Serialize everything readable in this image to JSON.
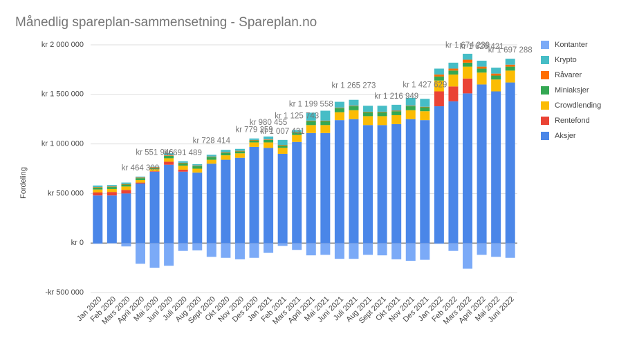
{
  "chart_data": {
    "type": "bar",
    "stacked": true,
    "title": "Månedlig spareplan-sammensetning - Spareplan.no",
    "y_label": "Fordeling",
    "categories": [
      "Jan 2020",
      "Feb 2020",
      "Mars 2020",
      "April 2020",
      "Mai 2020",
      "Juni 2020",
      "Juli 2020",
      "Aug 2020",
      "Sept 2020",
      "Okt 2020",
      "Nov 2020",
      "Des 2020",
      "Jan 2021",
      "Feb 2021",
      "Mars 2021",
      "April 2021",
      "Mai 2021",
      "Juni 2021",
      "Juli 2021",
      "Aug 2021",
      "Sept 2021",
      "Okt 2021",
      "Nov 2021",
      "Des 2021",
      "Jan 2022",
      "Feb 2022",
      "Mars 2022",
      "April 2022",
      "Mai 2022",
      "Juni 2022"
    ],
    "series": [
      {
        "name": "Aksjer",
        "color": "#4a86e8",
        "values": [
          480000,
          480000,
          500000,
          600000,
          720000,
          790000,
          720000,
          710000,
          800000,
          840000,
          860000,
          970000,
          960000,
          900000,
          1020000,
          1110000,
          1110000,
          1240000,
          1250000,
          1190000,
          1190000,
          1200000,
          1250000,
          1240000,
          1380000,
          1430000,
          1510000,
          1600000,
          1530000,
          1620000
        ]
      },
      {
        "name": "Rentefond",
        "color": "#ea4335",
        "values": [
          30000,
          35000,
          35000,
          10000,
          5000,
          30000,
          20000,
          0,
          0,
          0,
          0,
          0,
          0,
          0,
          0,
          0,
          0,
          0,
          0,
          0,
          0,
          0,
          0,
          0,
          150000,
          150000,
          150000,
          0,
          0,
          0
        ]
      },
      {
        "name": "Crowdlending",
        "color": "#fbbc04",
        "values": [
          30000,
          30000,
          35000,
          25000,
          20000,
          35000,
          40000,
          40000,
          40000,
          45000,
          45000,
          45000,
          55000,
          60000,
          70000,
          80000,
          80000,
          80000,
          90000,
          90000,
          90000,
          90000,
          90000,
          90000,
          110000,
          120000,
          120000,
          120000,
          120000,
          120000
        ]
      },
      {
        "name": "Miniaksjer",
        "color": "#34a853",
        "values": [
          20000,
          20000,
          20000,
          20000,
          10000,
          25000,
          25000,
          25000,
          25000,
          25000,
          20000,
          20000,
          25000,
          25000,
          25000,
          40000,
          40000,
          40000,
          40000,
          40000,
          40000,
          40000,
          40000,
          40000,
          40000,
          40000,
          40000,
          40000,
          40000,
          40000
        ]
      },
      {
        "name": "Råvarer",
        "color": "#ff6d01",
        "values": [
          5000,
          5000,
          5000,
          5000,
          10000,
          5000,
          5000,
          5000,
          5000,
          5000,
          5000,
          5000,
          5000,
          5000,
          5000,
          5000,
          5000,
          5000,
          5000,
          5000,
          5000,
          5000,
          5000,
          5000,
          20000,
          20000,
          30000,
          20000,
          20000,
          20000
        ]
      },
      {
        "name": "Krypto",
        "color": "#46bdc6",
        "values": [
          15000,
          15000,
          15000,
          10000,
          5000,
          20000,
          15000,
          15000,
          20000,
          25000,
          20000,
          15000,
          30000,
          50000,
          20000,
          80000,
          100000,
          60000,
          60000,
          60000,
          60000,
          60000,
          80000,
          80000,
          60000,
          60000,
          60000,
          60000,
          60000,
          60000
        ]
      },
      {
        "name": "Kontanter",
        "color": "#7baaf7",
        "values": [
          -10000,
          -5000,
          -35000,
          -210000,
          -250000,
          -230000,
          -80000,
          -75000,
          -140000,
          -150000,
          -165000,
          -150000,
          -100000,
          -30000,
          -70000,
          -125000,
          -120000,
          -160000,
          -160000,
          -120000,
          -125000,
          -165000,
          -180000,
          -170000,
          -10000,
          -80000,
          -260000,
          -120000,
          -140000,
          -150000
        ]
      }
    ],
    "annotations": [
      {
        "category": "April 2020",
        "text": "kr 464 300"
      },
      {
        "category": "Mai 2020",
        "text": "kr 551 946"
      },
      {
        "category": "Juli 2020",
        "text": "kr 691 489"
      },
      {
        "category": "Sept 2020",
        "text": "kr 728 414"
      },
      {
        "category": "Des 2020",
        "text": "kr 779 259"
      },
      {
        "category": "Jan 2021",
        "text": "kr 980 455"
      },
      {
        "category": "Feb 2021",
        "text": "kr 1 007 431"
      },
      {
        "category": "Mars 2021",
        "text": "kr 1 125 743"
      },
      {
        "category": "April 2021",
        "text": "kr 1 199 558"
      },
      {
        "category": "Juli 2021",
        "text": "kr 1 265 273"
      },
      {
        "category": "Okt 2021",
        "text": "kr 1 216 949"
      },
      {
        "category": "Des 2021",
        "text": "kr 1 427 629"
      },
      {
        "category": "Mars 2022",
        "text": "kr 1 674 239"
      },
      {
        "category": "April 2022",
        "text": "kr 1 626 421"
      },
      {
        "category": "Juni 2022",
        "text": "kr 1 697 288"
      }
    ],
    "ylim": [
      -500000,
      2000000
    ],
    "yticks": [
      {
        "value": -500000,
        "label": "-kr  500 000"
      },
      {
        "value": 0,
        "label": "kr   0"
      },
      {
        "value": 500000,
        "label": "kr 500 000"
      },
      {
        "value": 1000000,
        "label": "kr 1 000 000"
      },
      {
        "value": 1500000,
        "label": "kr 1 500 000"
      },
      {
        "value": 2000000,
        "label": "kr 2 000 000"
      }
    ],
    "grid": true,
    "legend": "right"
  }
}
